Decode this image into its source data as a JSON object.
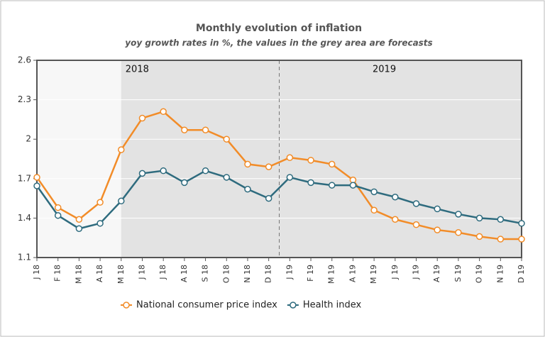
{
  "chart_data": {
    "type": "line",
    "title": "Monthly evolution of inflation",
    "subtitle": "yoy growth rates in %, the values in the grey area are forecasts",
    "categories": [
      "J 18",
      "F 18",
      "M 18",
      "A 18",
      "M 18",
      "J 18",
      "J 18",
      "A 18",
      "S 18",
      "O 18",
      "N 18",
      "D 18",
      "J 19",
      "F 19",
      "M 19",
      "A 19",
      "M 19",
      "J 19",
      "J 19",
      "A 19",
      "S 19",
      "O 19",
      "N 19",
      "D 19"
    ],
    "series": [
      {
        "name": "National consumer price index",
        "color": "#f28c28",
        "values": [
          1.71,
          1.48,
          1.39,
          1.52,
          1.92,
          2.16,
          2.21,
          2.07,
          2.07,
          2.0,
          1.81,
          1.79,
          1.86,
          1.84,
          1.81,
          1.69,
          1.46,
          1.39,
          1.35,
          1.31,
          1.29,
          1.26,
          1.24,
          1.24
        ]
      },
      {
        "name": "Health index",
        "color": "#2e6b7e",
        "values": [
          1.645,
          1.42,
          1.32,
          1.36,
          1.53,
          1.74,
          1.76,
          1.67,
          1.76,
          1.71,
          1.62,
          1.55,
          1.71,
          1.67,
          1.65,
          1.65,
          1.6,
          1.56,
          1.51,
          1.47,
          1.43,
          1.4,
          1.39,
          1.36
        ]
      }
    ],
    "ylim": [
      1.1,
      2.6
    ],
    "yticks": [
      1.1,
      1.4,
      1.7,
      2,
      2.3,
      2.6
    ],
    "annotations": [
      "2018",
      "2019"
    ],
    "shaded_from_index": 4,
    "legend": "bottom"
  }
}
